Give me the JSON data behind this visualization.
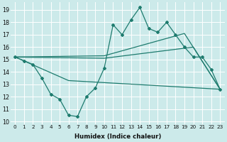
{
  "xlabel": "Humidex (Indice chaleur)",
  "bg_color": "#cceaea",
  "line_color": "#1e7b6e",
  "grid_color": "#ffffff",
  "xlim": [
    -0.5,
    23.5
  ],
  "ylim": [
    9.8,
    19.6
  ],
  "yticks": [
    10,
    11,
    12,
    13,
    14,
    15,
    16,
    17,
    18,
    19
  ],
  "xticks": [
    0,
    1,
    2,
    3,
    4,
    5,
    6,
    7,
    8,
    9,
    10,
    11,
    12,
    13,
    14,
    15,
    16,
    17,
    18,
    19,
    20,
    21,
    22,
    23
  ],
  "line1_x": [
    0,
    1,
    2,
    3,
    4,
    5,
    6,
    7,
    8,
    9,
    10,
    11,
    12,
    13,
    14,
    15,
    16,
    17,
    18,
    19,
    20,
    21,
    22,
    23
  ],
  "line1_y": [
    15.2,
    14.9,
    14.6,
    13.5,
    12.2,
    11.8,
    10.5,
    10.4,
    12.0,
    12.7,
    14.3,
    17.8,
    17.0,
    18.2,
    19.2,
    17.5,
    17.2,
    18.0,
    17.0,
    16.0,
    15.2,
    15.2,
    14.2,
    12.6
  ],
  "line2_x": [
    0,
    6,
    23
  ],
  "line2_y": [
    15.2,
    13.3,
    12.6
  ],
  "line3_x": [
    0,
    10,
    20,
    23
  ],
  "line3_y": [
    15.2,
    15.1,
    16.0,
    12.6
  ],
  "line4_x": [
    0,
    10,
    19,
    23
  ],
  "line4_y": [
    15.2,
    15.3,
    17.1,
    12.6
  ]
}
